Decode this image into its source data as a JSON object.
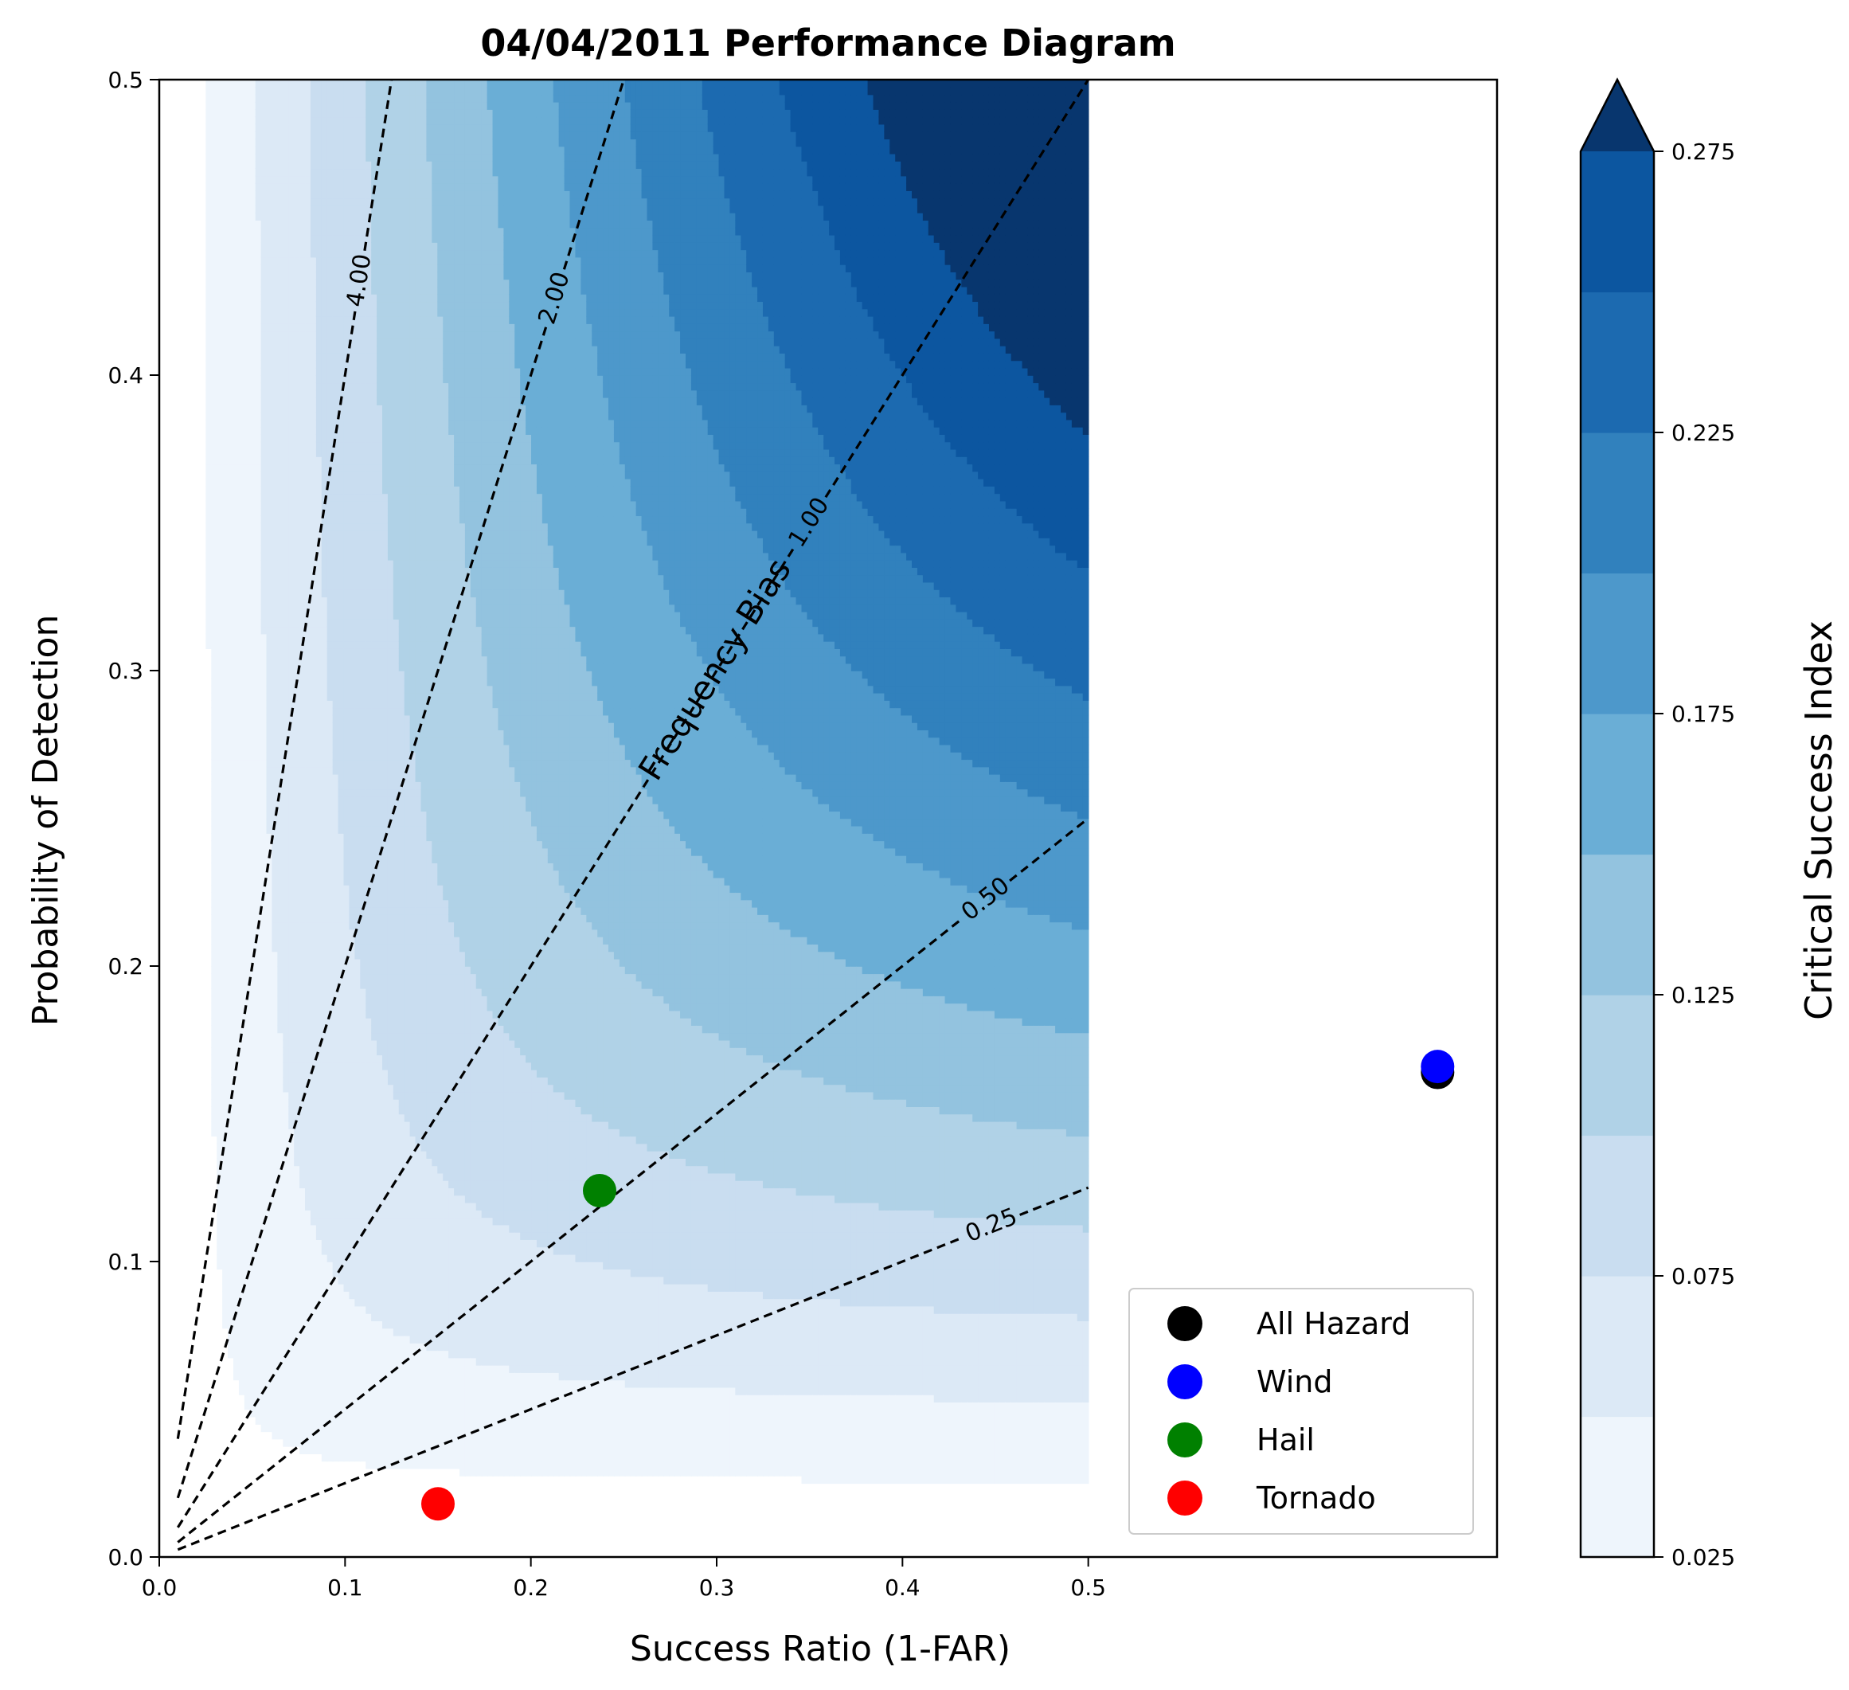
{
  "chart_data": {
    "type": "scatter",
    "title": "04/04/2011 Performance Diagram",
    "xlabel": "Success Ratio (1-FAR)",
    "ylabel": "Probability of Detection",
    "xlim": [
      0,
      0.72
    ],
    "ylim": [
      0,
      0.5
    ],
    "xticks": [
      "0.0",
      "0.1",
      "0.2",
      "0.3",
      "0.4",
      "0.5"
    ],
    "yticks": [
      "0.0",
      "0.1",
      "0.2",
      "0.3",
      "0.4",
      "0.5"
    ],
    "contour_extent": [
      0.025,
      0.5
    ],
    "csi_levels": [
      0.025,
      0.05,
      0.075,
      0.1,
      0.125,
      0.15,
      0.175,
      0.2,
      0.225,
      0.25,
      0.275,
      0.3
    ],
    "csi_colors": [
      "#eef5fc",
      "#dce9f6",
      "#c9ddf0",
      "#b0d2e7",
      "#93c3df",
      "#6aaed6",
      "#4d98cb",
      "#3181bd",
      "#1c6ab0",
      "#0c56a0",
      "#08366e"
    ],
    "colorbar": {
      "label": "Critical Success Index",
      "ticks": [
        "0.025",
        "0.075",
        "0.125",
        "0.175",
        "0.225",
        "0.275"
      ],
      "extend": "max"
    },
    "bias_lines": [
      {
        "bias": 4.0,
        "label": "4.00",
        "label_x": 0.108
      },
      {
        "bias": 2.0,
        "label": "2.00",
        "label_x": 0.213
      },
      {
        "bias": 1.0,
        "label": "1.00",
        "label_x": 0.35
      },
      {
        "bias": 0.5,
        "label": "0.50",
        "label_x": 0.445
      },
      {
        "bias": 0.25,
        "label": "0.25",
        "label_x": 0.448
      }
    ],
    "bias_annotation": "Frequency Bias",
    "series": [
      {
        "name": "All Hazard",
        "color": "#000000",
        "x": [
          0.688
        ],
        "y": [
          0.164
        ]
      },
      {
        "name": "Wind",
        "color": "#0000ff",
        "x": [
          0.688
        ],
        "y": [
          0.166
        ]
      },
      {
        "name": "Hail",
        "color": "#008000",
        "x": [
          0.237
        ],
        "y": [
          0.124
        ]
      },
      {
        "name": "Tornado",
        "color": "#ff0000",
        "x": [
          0.15
        ],
        "y": [
          0.018
        ]
      }
    ],
    "legend_position": "lower-right"
  }
}
